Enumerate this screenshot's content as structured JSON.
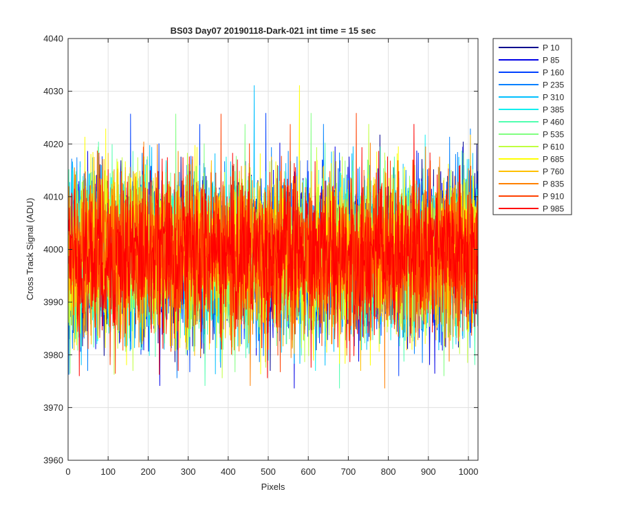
{
  "chart_data": {
    "type": "line",
    "title": "BS03 Day07 20190118-Dark-021 int time = 15 sec",
    "xlabel": "Pixels",
    "ylabel": "Cross Track Signal (ADU)",
    "xlim": [
      0,
      1024
    ],
    "ylim": [
      3960,
      4040
    ],
    "xticks": [
      0,
      100,
      200,
      300,
      400,
      500,
      600,
      700,
      800,
      900,
      1000
    ],
    "yticks": [
      3960,
      3970,
      3980,
      3990,
      4000,
      4010,
      4020,
      4030,
      4040
    ],
    "grid": true,
    "legend_position": "outside-top-right",
    "noise": {
      "mean": 3999,
      "sigma": 7.5,
      "min": 3969,
      "max": 4039,
      "points_per_series": 1024
    },
    "series": [
      {
        "name": "P 10",
        "color": "#00008f"
      },
      {
        "name": "P 85",
        "color": "#0000e6"
      },
      {
        "name": "P 160",
        "color": "#0040ff"
      },
      {
        "name": "P 235",
        "color": "#0080ff"
      },
      {
        "name": "P 310",
        "color": "#00bfff"
      },
      {
        "name": "P 385",
        "color": "#10efef"
      },
      {
        "name": "P 460",
        "color": "#50ffaf"
      },
      {
        "name": "P 535",
        "color": "#80ff80"
      },
      {
        "name": "P 610",
        "color": "#c0ff40"
      },
      {
        "name": "P 685",
        "color": "#ffff00"
      },
      {
        "name": "P 760",
        "color": "#ffbf00"
      },
      {
        "name": "P 835",
        "color": "#ff8000"
      },
      {
        "name": "P 910",
        "color": "#ff4000"
      },
      {
        "name": "P 985",
        "color": "#ff0000"
      }
    ]
  }
}
